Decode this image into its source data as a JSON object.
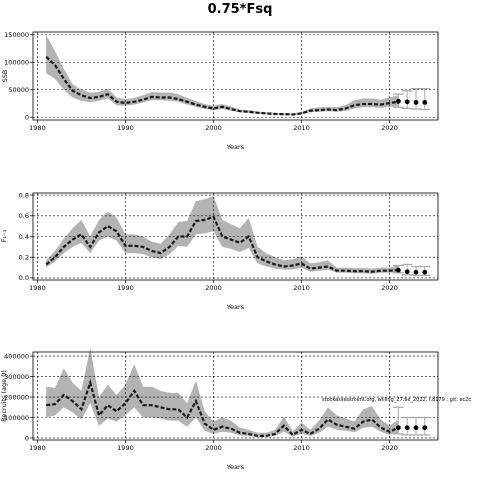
{
  "figure": {
    "title": "0.75*Fsq",
    "annotation": "stockassessment.org, willing_27.6e_2022, r.8179 ; git: ec2c"
  },
  "chart_data": [
    {
      "type": "line",
      "name": "ssb-panel",
      "xlabel": "Years",
      "ylabel": "SSB",
      "xlim": [
        1979.5,
        2025.5
      ],
      "ylim": [
        -5000,
        155000
      ],
      "xticks": [
        1980,
        1990,
        2000,
        2010,
        2020
      ],
      "xtick_labels": [
        "1980",
        "1990",
        "2000",
        "2010",
        "2020"
      ],
      "yticks": [
        0,
        50000,
        100000,
        150000
      ],
      "ytick_labels": [
        "0",
        "50000",
        "100000",
        "150000"
      ],
      "grid": true,
      "x": [
        1981,
        1982,
        1983,
        1984,
        1985,
        1986,
        1987,
        1988,
        1989,
        1990,
        1991,
        1992,
        1993,
        1994,
        1995,
        1996,
        1997,
        1998,
        1999,
        2000,
        2001,
        2002,
        2003,
        2004,
        2005,
        2006,
        2007,
        2008,
        2009,
        2010,
        2011,
        2012,
        2013,
        2014,
        2015,
        2016,
        2017,
        2018,
        2019,
        2020,
        2021
      ],
      "estimate": [
        110000,
        95000,
        70000,
        48000,
        40000,
        35000,
        37000,
        42000,
        28000,
        26000,
        28000,
        32000,
        37000,
        36000,
        36000,
        33000,
        28000,
        23000,
        19000,
        16000,
        19000,
        15000,
        11000,
        10000,
        8000,
        7000,
        6000,
        5500,
        5000,
        7000,
        12000,
        13000,
        14000,
        13000,
        16000,
        22000,
        24000,
        24000,
        23000,
        26000,
        28000
      ],
      "lower": [
        80000,
        70000,
        50000,
        36000,
        30000,
        27000,
        30000,
        34000,
        22000,
        21000,
        23000,
        27000,
        31000,
        31000,
        30000,
        28000,
        23000,
        19000,
        15000,
        13000,
        15000,
        12000,
        9000,
        8000,
        6500,
        5500,
        5000,
        4500,
        4000,
        5500,
        9000,
        10000,
        11000,
        10000,
        12000,
        16000,
        18000,
        18000,
        17000,
        19000,
        20000
      ],
      "upper": [
        150000,
        120000,
        88000,
        60000,
        50000,
        45000,
        46000,
        52000,
        36000,
        33000,
        35000,
        40000,
        46000,
        45000,
        45000,
        42000,
        35000,
        29000,
        24000,
        21000,
        24000,
        19000,
        14000,
        13000,
        10500,
        9000,
        8000,
        7500,
        7000,
        9500,
        16000,
        18000,
        19000,
        18000,
        22000,
        31000,
        34000,
        34000,
        32000,
        36000,
        40000
      ],
      "forecast": {
        "x": [
          2021,
          2022,
          2023,
          2024
        ],
        "points": [
          29000,
          28000,
          27000,
          27000
        ],
        "lower": [
          18000,
          16000,
          15000,
          14000
        ],
        "upper": [
          42000,
          48000,
          52000,
          52000
        ]
      }
    },
    {
      "type": "line",
      "name": "f-panel",
      "xlabel": "Years",
      "ylabel": "F₁₋₃",
      "xlim": [
        1979.5,
        2025.5
      ],
      "ylim": [
        -0.02,
        0.82
      ],
      "xticks": [
        1980,
        1990,
        2000,
        2010,
        2020
      ],
      "xtick_labels": [
        "1980",
        "1990",
        "2000",
        "2010",
        "2020"
      ],
      "yticks": [
        0.0,
        0.2,
        0.4,
        0.6,
        0.8
      ],
      "ytick_labels": [
        "0.0",
        "0.2",
        "0.4",
        "0.6",
        "0.8"
      ],
      "grid": true,
      "x": [
        1981,
        1982,
        1983,
        1984,
        1985,
        1986,
        1987,
        1988,
        1989,
        1990,
        1991,
        1992,
        1993,
        1994,
        1995,
        1996,
        1997,
        1998,
        1999,
        2000,
        2001,
        2002,
        2003,
        2004,
        2005,
        2006,
        2007,
        2008,
        2009,
        2010,
        2011,
        2012,
        2013,
        2014,
        2015,
        2016,
        2017,
        2018,
        2019,
        2020,
        2021
      ],
      "estimate": [
        0.13,
        0.2,
        0.3,
        0.37,
        0.42,
        0.3,
        0.44,
        0.5,
        0.45,
        0.31,
        0.31,
        0.3,
        0.26,
        0.24,
        0.3,
        0.4,
        0.4,
        0.55,
        0.56,
        0.59,
        0.4,
        0.37,
        0.34,
        0.4,
        0.2,
        0.16,
        0.13,
        0.11,
        0.12,
        0.14,
        0.09,
        0.1,
        0.11,
        0.07,
        0.07,
        0.065,
        0.065,
        0.06,
        0.07,
        0.07,
        0.075
      ],
      "lower": [
        0.1,
        0.16,
        0.24,
        0.3,
        0.34,
        0.24,
        0.36,
        0.4,
        0.36,
        0.24,
        0.24,
        0.23,
        0.2,
        0.18,
        0.23,
        0.31,
        0.3,
        0.42,
        0.43,
        0.45,
        0.3,
        0.28,
        0.25,
        0.29,
        0.14,
        0.11,
        0.09,
        0.08,
        0.08,
        0.1,
        0.06,
        0.07,
        0.08,
        0.05,
        0.05,
        0.045,
        0.045,
        0.04,
        0.05,
        0.05,
        0.05
      ],
      "upper": [
        0.17,
        0.26,
        0.38,
        0.48,
        0.56,
        0.4,
        0.56,
        0.64,
        0.58,
        0.42,
        0.42,
        0.4,
        0.35,
        0.33,
        0.42,
        0.54,
        0.55,
        0.74,
        0.76,
        0.79,
        0.56,
        0.52,
        0.48,
        0.58,
        0.3,
        0.24,
        0.2,
        0.17,
        0.18,
        0.21,
        0.14,
        0.15,
        0.17,
        0.1,
        0.1,
        0.095,
        0.095,
        0.09,
        0.1,
        0.1,
        0.12
      ],
      "forecast": {
        "x": [
          2021,
          2022,
          2023,
          2024
        ],
        "points": [
          0.075,
          0.06,
          0.055,
          0.055
        ],
        "lower": [
          0.05,
          0.03,
          0.025,
          0.025
        ],
        "upper": [
          0.12,
          0.13,
          0.11,
          0.11
        ]
      }
    },
    {
      "type": "line",
      "name": "recruitment-panel",
      "xlabel": "Years",
      "ylabel": "Recruits (age 0)",
      "xlim": [
        1979.5,
        2025.5
      ],
      "ylim": [
        -10000,
        420000
      ],
      "xticks": [
        1980,
        1990,
        2000,
        2010,
        2020
      ],
      "xtick_labels": [
        "1980",
        "1990",
        "2000",
        "2010",
        "2020"
      ],
      "yticks": [
        0,
        100000,
        200000,
        300000,
        400000
      ],
      "ytick_labels": [
        "0",
        "100000",
        "200000",
        "300000",
        "400000"
      ],
      "grid": true,
      "x": [
        1981,
        1982,
        1983,
        1984,
        1985,
        1986,
        1987,
        1988,
        1989,
        1990,
        1991,
        1992,
        1993,
        1994,
        1995,
        1996,
        1997,
        1998,
        1999,
        2000,
        2001,
        2002,
        2003,
        2004,
        2005,
        2006,
        2007,
        2008,
        2009,
        2010,
        2011,
        2012,
        2013,
        2014,
        2015,
        2016,
        2017,
        2018,
        2019,
        2020,
        2021
      ],
      "estimate": [
        160000,
        165000,
        210000,
        180000,
        140000,
        270000,
        110000,
        160000,
        130000,
        170000,
        230000,
        160000,
        160000,
        150000,
        140000,
        140000,
        100000,
        180000,
        70000,
        40000,
        55000,
        45000,
        25000,
        20000,
        10000,
        10000,
        20000,
        60000,
        15000,
        40000,
        20000,
        45000,
        90000,
        65000,
        55000,
        45000,
        80000,
        90000,
        50000,
        30000,
        50000
      ],
      "lower": [
        100000,
        110000,
        150000,
        125000,
        90000,
        170000,
        60000,
        95000,
        80000,
        110000,
        150000,
        100000,
        100000,
        95000,
        85000,
        85000,
        55000,
        100000,
        35000,
        20000,
        30000,
        25000,
        12000,
        10000,
        5000,
        5000,
        10000,
        30000,
        7000,
        20000,
        10000,
        25000,
        55000,
        40000,
        35000,
        28000,
        50000,
        55000,
        30000,
        15000,
        25000
      ],
      "upper": [
        250000,
        245000,
        340000,
        270000,
        230000,
        440000,
        200000,
        260000,
        210000,
        260000,
        360000,
        250000,
        250000,
        230000,
        220000,
        220000,
        170000,
        280000,
        130000,
        80000,
        100000,
        85000,
        50000,
        40000,
        25000,
        25000,
        40000,
        105000,
        32000,
        75000,
        40000,
        85000,
        150000,
        110000,
        95000,
        80000,
        140000,
        155000,
        90000,
        60000,
        90000
      ],
      "forecast": {
        "x": [
          2021,
          2022,
          2023,
          2024
        ],
        "points": [
          50000,
          50000,
          50000,
          50000
        ],
        "lower": [
          20000,
          15000,
          15000,
          15000
        ],
        "upper": [
          150000,
          100000,
          100000,
          100000
        ]
      }
    }
  ]
}
